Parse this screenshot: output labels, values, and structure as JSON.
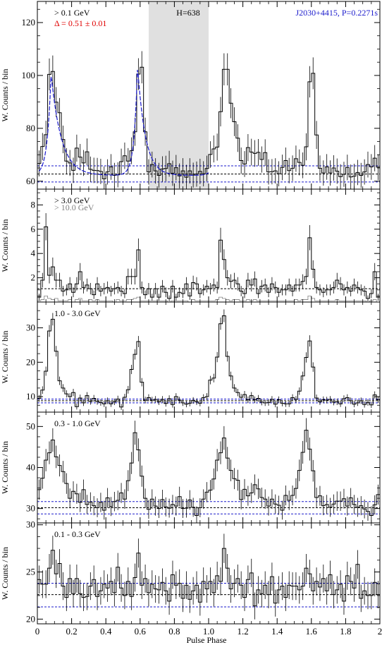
{
  "figure": {
    "xlabel": "Pulse Phase",
    "ylabel": "W. Counts / bin",
    "source_label": "J2030+4415, P=0.2271s",
    "h_label": "H=638",
    "delta_label": "Δ = 0.51 ± 0.01",
    "colors": {
      "black": "#000000",
      "blue": "#1a1acc",
      "red": "#e00000",
      "gray": "#808080",
      "shade": "#e0e0e0"
    }
  },
  "chart_data": [
    {
      "type": "line",
      "energy_label": "> 0.1 GeV",
      "xlim": [
        0,
        2
      ],
      "ylim": [
        57,
        128
      ],
      "yticks": [
        60,
        80,
        100,
        120
      ],
      "xticks": [
        0,
        0.2,
        0.4,
        0.6,
        0.8,
        1.0,
        1.2,
        1.4,
        1.6,
        1.8,
        2.0
      ],
      "shaded_phase": [
        0.65,
        1.0
      ],
      "dashed_levels_blue": [
        59.7,
        65.8
      ],
      "dashed_levels_black": [
        62.7
      ],
      "fit_curve": "blue",
      "series": [
        {
          "values": [
            66.7,
            73.1,
            77.6,
            100.4,
            101.5,
            89.9,
            85.9,
            75.8,
            67.6,
            66.9,
            64.1,
            72.5,
            69.1,
            66.9,
            71.1,
            64.5,
            64.1,
            64.0,
            63.7,
            60.9,
            63.5,
            65.4,
            62.2,
            62.4,
            67.4,
            69.6,
            67.6,
            71.5,
            78.7,
            100.5,
            103.1,
            78.7,
            63.5,
            66.3,
            63.9,
            62.2,
            64.6,
            64.8,
            66.6,
            63.0,
            65.1,
            62.0,
            63.9,
            61.5,
            63.9,
            62.3,
            62.7,
            63.7,
            62.8,
            64.8,
            70.1,
            72.2,
            72.9,
            86.3,
            102.3,
            102.3,
            89.5,
            82.5,
            76.3,
            67.8,
            66.5,
            72.7,
            71.0,
            70.5,
            70.9,
            68.2,
            70.8,
            63.5,
            63.6,
            63.9,
            62.8,
            65.2,
            67.8,
            64.0,
            64.9,
            68.5,
            67.1,
            66.0,
            73.0,
            97.6,
            100.8,
            77.5,
            64.9,
            63.1,
            65.4,
            63.1,
            65.0,
            63.8,
            61.7,
            62.6,
            65.2,
            61.6,
            61.9,
            63.3,
            62.2,
            63.5,
            66.3,
            65.4,
            68.7,
            65.3
          ]
        }
      ]
    },
    {
      "type": "line",
      "energy_label": "> 3.0 GeV",
      "energy_label_2": "> 10.0 GeV",
      "xlim": [
        0,
        2
      ],
      "ylim": [
        0,
        9.3
      ],
      "yticks": [
        2,
        4,
        6,
        8
      ],
      "xticks": [
        0,
        0.2,
        0.4,
        0.6,
        0.8,
        1.0,
        1.2,
        1.4,
        1.6,
        1.8,
        2.0
      ],
      "dashed_levels_black": [
        1.1
      ],
      "series": [
        {
          "values": [
            0.4,
            1.8,
            6.2,
            2.2,
            2.9,
            1.8,
            1.8,
            0.9,
            1.0,
            1.5,
            0.8,
            1.5,
            2.5,
            1.2,
            1.4,
            1.1,
            0.6,
            1.5,
            0.9,
            1.1,
            1.2,
            0.9,
            1.1,
            1.2,
            0.9,
            0.7,
            2.1,
            2.1,
            2.1,
            4.3,
            1.2,
            0.6,
            1.1,
            0.4,
            1.1,
            0.4,
            1.3,
            0.8,
            0.3,
            1.3,
            0.4,
            0.8,
            0.7,
            1.5,
            0.5,
            1.6,
            1.5,
            0.7,
            1.0,
            1.3,
            1.1,
            1.4,
            1.2,
            5.1,
            3.5,
            2.0,
            1.7,
            1.8,
            1.5,
            0.9,
            0.7,
            1.8,
            1.4,
            1.9,
            0.7,
            1.3,
            1.4,
            0.8,
            1.5,
            1.2,
            0.8,
            1.0,
            1.0,
            1.4,
            0.9,
            1.4,
            1.4,
            1.7,
            2.1,
            5.3,
            2.7,
            1.2,
            1.0,
            0.8,
            1.0,
            1.0,
            1.2,
            1.8,
            1.5,
            1.0,
            1.2,
            0.9,
            1.4,
            1.2,
            1.0,
            0.9,
            0.3,
            0.7,
            2.5,
            0.4
          ]
        },
        {
          "values": [
            0.1,
            0.2,
            0.5,
            0.3,
            0.2,
            0.3,
            0.1,
            0.1,
            0.1,
            0.2,
            0.0,
            0.2,
            0.3,
            0.1,
            0.1,
            0.2,
            0.1,
            0.2,
            0.1,
            0.1,
            0.1,
            0.1,
            0.0,
            0.2,
            0.1,
            0.1,
            0.2,
            0.2,
            0.3,
            0.4,
            0.1,
            0.1,
            0.1,
            0.1,
            0.1,
            0.1,
            0.1,
            0.1,
            0.0,
            0.1,
            0.1,
            0.1,
            0.1,
            0.1,
            0.0,
            0.2,
            0.1,
            0.1,
            0.1,
            0.1,
            0.1,
            0.1,
            0.2,
            0.4,
            0.3,
            0.2,
            0.1,
            0.2,
            0.2,
            0.1,
            0.1,
            0.2,
            0.1,
            0.2,
            0.1,
            0.1,
            0.1,
            0.1,
            0.1,
            0.1,
            0.1,
            0.1,
            0.1,
            0.1,
            0.1,
            0.2,
            0.1,
            0.2,
            0.2,
            0.5,
            0.3,
            0.1,
            0.1,
            0.1,
            0.1,
            0.1,
            0.1,
            0.2,
            0.1,
            0.1,
            0.1,
            0.1,
            0.1,
            0.1,
            0.1,
            0.1,
            0.0,
            0.1,
            0.2,
            0.0
          ]
        }
      ]
    },
    {
      "type": "line",
      "energy_label": "1.0 - 3.0 GeV",
      "xlim": [
        0,
        2
      ],
      "ylim": [
        5.5,
        37.5
      ],
      "yticks": [
        10,
        20,
        30
      ],
      "xticks": [
        0,
        0.2,
        0.4,
        0.6,
        0.8,
        1.0,
        1.2,
        1.4,
        1.6,
        1.8,
        2.0
      ],
      "dashed_levels_blue": [
        8.2,
        9.3
      ],
      "dashed_levels_black": [
        8.8
      ],
      "series": [
        {
          "values": [
            9.5,
            11.9,
            17.4,
            29.1,
            32.5,
            23.2,
            14.6,
            12.5,
            10.8,
            10.0,
            11.2,
            7.1,
            9.6,
            8.2,
            10.3,
            8.6,
            9.5,
            8.6,
            8.3,
            7.9,
            8.8,
            7.9,
            8.5,
            9.3,
            7.0,
            9.8,
            12.0,
            17.9,
            22.3,
            26.0,
            14.2,
            9.0,
            9.7,
            9.0,
            9.2,
            8.5,
            9.2,
            8.0,
            9.4,
            7.7,
            10.0,
            9.0,
            8.2,
            7.8,
            8.1,
            8.9,
            8.5,
            8.1,
            9.7,
            10.0,
            14.8,
            15.4,
            21.5,
            31.2,
            33.5,
            21.7,
            16.0,
            12.5,
            11.2,
            9.8,
            10.6,
            9.1,
            10.3,
            9.1,
            9.5,
            8.4,
            8.2,
            8.3,
            9.2,
            7.8,
            9.1,
            8.1,
            7.9,
            7.9,
            9.7,
            9.2,
            11.6,
            16.0,
            21.4,
            26.2,
            18.6,
            9.6,
            8.5,
            9.1,
            9.0,
            9.2,
            8.4,
            8.5,
            7.9,
            9.4,
            9.7,
            8.8,
            7.8,
            8.2,
            8.8,
            7.7,
            8.3,
            7.6,
            10.5,
            9.1
          ]
        }
      ]
    },
    {
      "type": "line",
      "energy_label": "0.3 - 1.0 GeV",
      "xlim": [
        0,
        2
      ],
      "ylim": [
        26.5,
        53.5
      ],
      "yticks": [
        30,
        40,
        50
      ],
      "xticks": [
        0,
        0.2,
        0.4,
        0.6,
        0.8,
        1.0,
        1.2,
        1.4,
        1.6,
        1.8,
        2.0
      ],
      "dashed_levels_blue": [
        28.7,
        31.7
      ],
      "dashed_levels_black": [
        30.2
      ],
      "series": [
        {
          "values": [
            34.6,
            37.4,
            41.8,
            43.6,
            46.7,
            42.6,
            40.5,
            39.0,
            36.1,
            32.5,
            34.2,
            33.6,
            31.5,
            34.6,
            31.0,
            31.6,
            30.7,
            30.2,
            31.5,
            29.6,
            32.6,
            30.5,
            31.7,
            32.0,
            33.8,
            32.3,
            36.8,
            41.1,
            48.5,
            44.3,
            37.9,
            32.5,
            29.8,
            32.3,
            30.6,
            30.0,
            32.2,
            30.4,
            30.1,
            31.0,
            30.6,
            32.9,
            30.0,
            30.1,
            32.1,
            30.3,
            28.3,
            30.2,
            32.3,
            34.0,
            34.5,
            37.2,
            41.8,
            43.6,
            47.2,
            42.3,
            39.3,
            37.3,
            36.9,
            32.2,
            34.7,
            33.1,
            33.8,
            35.8,
            34.8,
            32.7,
            32.3,
            30.6,
            32.3,
            31.1,
            30.8,
            29.6,
            33.2,
            32.0,
            33.2,
            34.9,
            39.3,
            43.7,
            49.1,
            44.5,
            39.2,
            32.7,
            33.1,
            30.7,
            31.0,
            30.3,
            31.1,
            31.8,
            31.8,
            32.4,
            30.6,
            32.6,
            31.0,
            30.3,
            30.7,
            29.9,
            29.3,
            28.3,
            30.9,
            33.4
          ]
        }
      ]
    },
    {
      "type": "line",
      "energy_label": "0.1 - 0.3 GeV",
      "xlim": [
        0,
        2
      ],
      "ylim": [
        19.5,
        30.2
      ],
      "yticks": [
        20,
        25,
        30
      ],
      "xticks": [
        0,
        0.2,
        0.4,
        0.6,
        0.8,
        1.0,
        1.2,
        1.4,
        1.6,
        1.8,
        2.0
      ],
      "dashed_levels_blue": [
        21.3,
        23.8
      ],
      "dashed_levels_black": [
        22.6
      ],
      "series": [
        {
          "values": [
            24.2,
            23.7,
            23.7,
            25.4,
            27.3,
            24.8,
            25.9,
            23.5,
            22.3,
            24.3,
            22.7,
            24.3,
            22.7,
            22.3,
            22.4,
            23.5,
            24.2,
            22.4,
            23.0,
            23.7,
            23.3,
            24.0,
            22.8,
            25.5,
            23.3,
            22.5,
            24.0,
            22.4,
            24.4,
            27.0,
            23.6,
            24.3,
            22.8,
            23.7,
            23.2,
            23.1,
            23.9,
            23.0,
            21.9,
            24.7,
            23.6,
            23.8,
            22.2,
            23.6,
            22.1,
            23.0,
            23.6,
            21.8,
            24.0,
            23.2,
            24.0,
            22.8,
            24.6,
            24.0,
            27.5,
            25.4,
            23.2,
            23.8,
            24.3,
            23.6,
            22.3,
            24.2,
            24.9,
            21.4,
            23.1,
            22.7,
            23.6,
            22.6,
            24.5,
            21.7,
            23.1,
            23.5,
            22.3,
            23.6,
            23.5,
            23.5,
            23.1,
            23.5,
            25.4,
            24.8,
            23.0,
            24.0,
            23.4,
            24.3,
            23.0,
            24.7,
            22.6,
            23.1,
            23.7,
            21.9,
            24.6,
            24.0,
            23.3,
            25.8,
            22.2,
            23.0,
            22.5,
            22.5,
            23.9,
            22.6
          ]
        }
      ]
    }
  ]
}
